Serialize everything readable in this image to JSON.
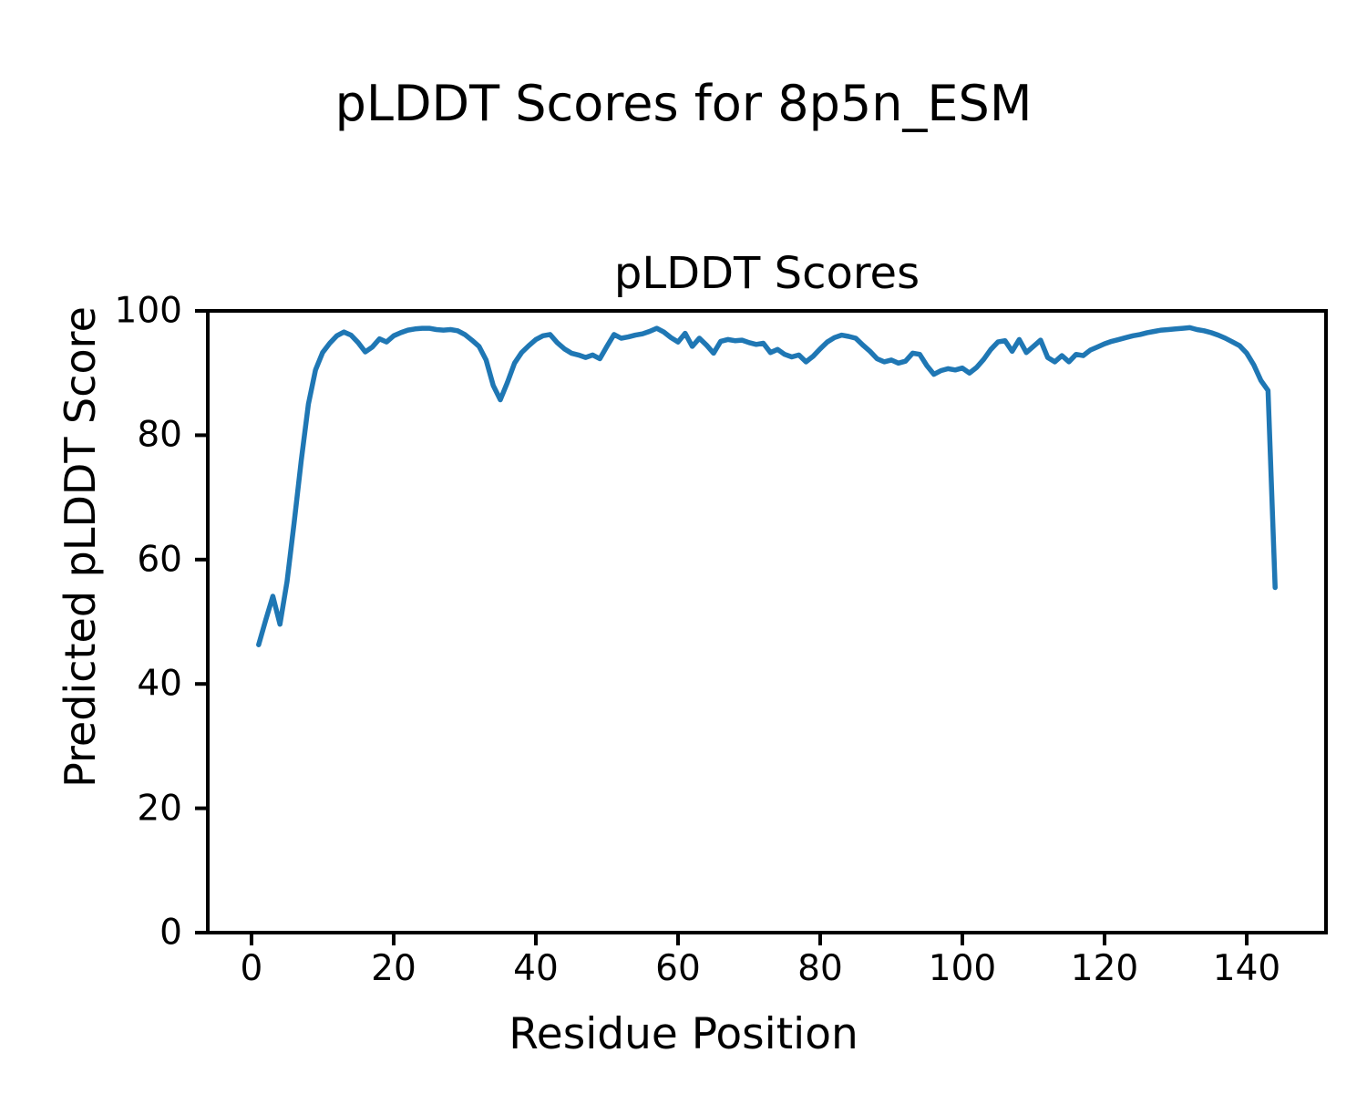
{
  "figure": {
    "background": "#ffffff",
    "axis_color": "#000000"
  },
  "chart_data": {
    "type": "line",
    "suptitle": "pLDDT Scores for 8p5n_ESM",
    "title": "pLDDT Scores",
    "xlabel": "Residue Position",
    "ylabel": "Predicted pLDDT Score",
    "xlim": [
      -6.15,
      151.15
    ],
    "ylim": [
      0,
      100
    ],
    "xticks": [
      0,
      20,
      40,
      60,
      80,
      100,
      120,
      140
    ],
    "yticks": [
      0,
      20,
      40,
      60,
      80,
      100
    ],
    "grid": false,
    "series": [
      {
        "name": "pLDDT",
        "color": "#1f77b4",
        "x_start": 1,
        "x_step": 1,
        "values": [
          46.3,
          50.3,
          54.1,
          49.6,
          56.5,
          66.0,
          76.0,
          85.0,
          90.5,
          93.3,
          94.8,
          96.0,
          96.6,
          96.1,
          94.9,
          93.4,
          94.2,
          95.5,
          95.0,
          96.0,
          96.5,
          96.9,
          97.1,
          97.2,
          97.2,
          97.0,
          96.9,
          97.0,
          96.8,
          96.2,
          95.3,
          94.3,
          92.1,
          88.0,
          85.7,
          88.5,
          91.6,
          93.3,
          94.4,
          95.4,
          96.0,
          96.2,
          94.9,
          93.9,
          93.2,
          92.9,
          92.5,
          92.9,
          92.3,
          94.3,
          96.2,
          95.6,
          95.8,
          96.1,
          96.3,
          96.7,
          97.2,
          96.6,
          95.7,
          95.0,
          96.4,
          94.3,
          95.6,
          94.5,
          93.2,
          95.1,
          95.4,
          95.2,
          95.3,
          94.9,
          94.6,
          94.8,
          93.3,
          93.8,
          93.0,
          92.6,
          92.9,
          91.8,
          92.7,
          93.9,
          95.0,
          95.7,
          96.1,
          95.9,
          95.6,
          94.5,
          93.5,
          92.3,
          91.8,
          92.1,
          91.6,
          91.9,
          93.2,
          93.0,
          91.2,
          89.8,
          90.4,
          90.7,
          90.5,
          90.8,
          90.0,
          90.9,
          92.2,
          93.8,
          95.0,
          95.2,
          93.5,
          95.4,
          93.3,
          94.3,
          95.3,
          92.5,
          91.8,
          92.8,
          91.8,
          93.0,
          92.8,
          93.7,
          94.2,
          94.7,
          95.1,
          95.4,
          95.7,
          96.0,
          96.2,
          96.5,
          96.7,
          96.9,
          97.0,
          97.1,
          97.2,
          97.3,
          97.0,
          96.8,
          96.5,
          96.1,
          95.6,
          95.0,
          94.4,
          93.2,
          91.3,
          88.8,
          87.2,
          55.5
        ]
      }
    ]
  }
}
